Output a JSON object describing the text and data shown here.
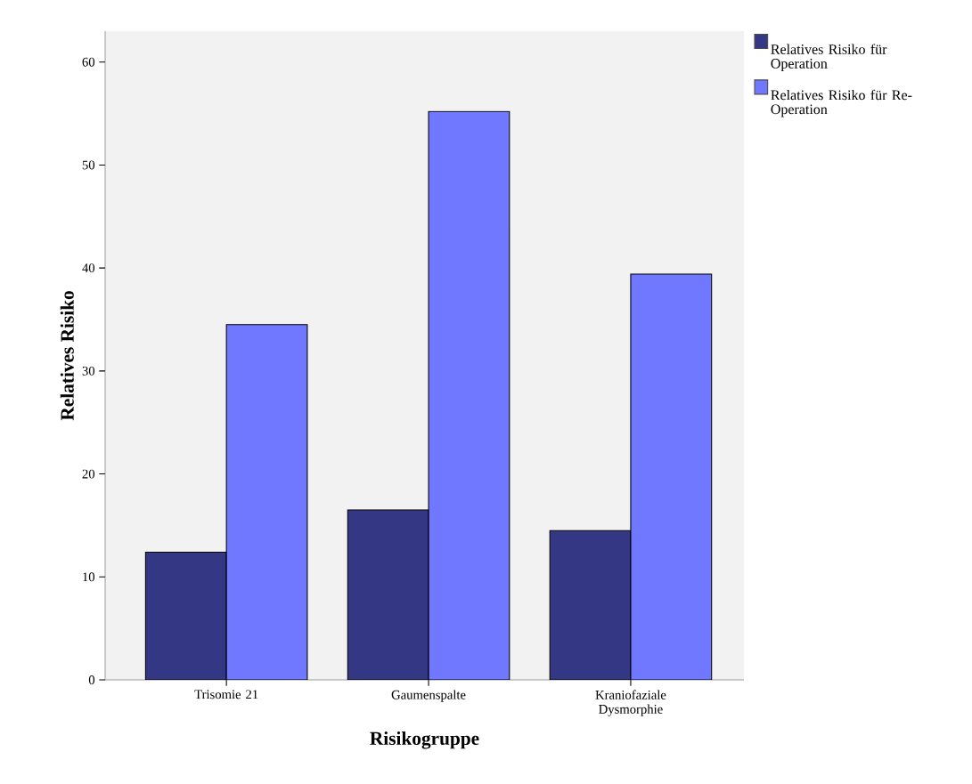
{
  "chart_data": {
    "type": "bar",
    "xlabel": "Risikogruppe",
    "ylabel": "Relatives Risiko",
    "categories": [
      "Trisomie 21",
      "Gaumenspalte",
      "Kraniofaziale Dysmorphie"
    ],
    "series": [
      {
        "name": "Relatives Risiko für Operation",
        "color": "#343884",
        "values": [
          12.4,
          16.5,
          14.5
        ]
      },
      {
        "name": "Relatives Risiko für Re-Operation",
        "color": "#6f78fe",
        "values": [
          34.5,
          55.2,
          39.4
        ]
      }
    ],
    "ylim": [
      0,
      63
    ],
    "yticks": [
      0,
      10,
      20,
      30,
      40,
      50,
      60
    ],
    "legend": "top right"
  }
}
